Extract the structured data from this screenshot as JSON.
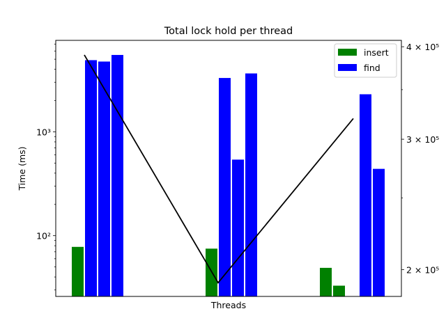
{
  "chart_data": {
    "type": "bar",
    "title": "Total lock hold per thread",
    "xlabel": "Threads",
    "ylabel": "Time (ms)",
    "y_scale": "log",
    "ylim": [
      26,
      7600
    ],
    "y_ticks": [
      {
        "value": 100,
        "label": "10²"
      },
      {
        "value": 1000,
        "label": "10³"
      }
    ],
    "y2_scale": "log",
    "y2lim": [
      184000,
      408000
    ],
    "y2_ticks": [
      {
        "value": 200000,
        "label": "2 × 10⁵"
      },
      {
        "value": 300000,
        "label": "3 × 10⁵"
      },
      {
        "value": 400000,
        "label": "4 × 10⁵"
      }
    ],
    "legend": {
      "position": "top-right",
      "entries": [
        {
          "name": "insert",
          "color": "#008000"
        },
        {
          "name": "find",
          "color": "#0000ff"
        }
      ]
    },
    "groups": [
      {
        "insert": [
          78
        ],
        "find": [
          4900,
          4750,
          5500
        ]
      },
      {
        "insert": [
          75
        ],
        "find": [
          3300,
          540,
          3650
        ]
      },
      {
        "insert": [
          49,
          33
        ],
        "find": [
          2300,
          440
        ]
      }
    ],
    "line": {
      "color": "#000000",
      "axis": "right",
      "values": [
        390000,
        192000,
        320000
      ]
    }
  }
}
